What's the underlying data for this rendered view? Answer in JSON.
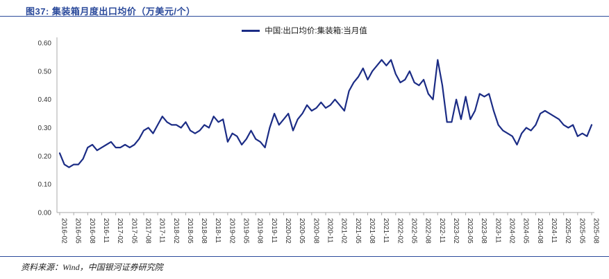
{
  "page": {
    "title": "图37:  集装箱月度出口均价（万美元/个）",
    "source": "资料来源：Wind，中国银河证券研究院",
    "accent_color": "#2b4a9b"
  },
  "chart_data": {
    "type": "line",
    "title": "集装箱月度出口均价（万美元/个）",
    "legend": [
      "中国:出口均价:集装箱:当月值"
    ],
    "line_color": "#1b2c85",
    "ylim": [
      0,
      0.6
    ],
    "yticks": [
      0.0,
      0.1,
      0.2,
      0.3,
      0.4,
      0.5,
      0.6
    ],
    "grid": false,
    "legend_position": "top-center",
    "x": [
      "2016-02",
      "2016-03",
      "2016-04",
      "2016-05",
      "2016-06",
      "2016-07",
      "2016-08",
      "2016-09",
      "2016-10",
      "2016-11",
      "2016-12",
      "2017-01",
      "2017-02",
      "2017-03",
      "2017-04",
      "2017-05",
      "2017-06",
      "2017-07",
      "2017-08",
      "2017-09",
      "2017-10",
      "2017-11",
      "2017-12",
      "2018-01",
      "2018-02",
      "2018-03",
      "2018-04",
      "2018-05",
      "2018-06",
      "2018-07",
      "2018-08",
      "2018-09",
      "2018-10",
      "2018-11",
      "2018-12",
      "2019-01",
      "2019-02",
      "2019-03",
      "2019-04",
      "2019-05",
      "2019-06",
      "2019-07",
      "2019-08",
      "2019-09",
      "2019-10",
      "2019-11",
      "2019-12",
      "2020-01",
      "2020-02",
      "2020-03",
      "2020-04",
      "2020-05",
      "2020-06",
      "2020-07",
      "2020-08",
      "2020-09",
      "2020-10",
      "2020-11",
      "2020-12",
      "2021-01",
      "2021-02",
      "2021-03",
      "2021-04",
      "2021-05",
      "2021-06",
      "2021-07",
      "2021-08",
      "2021-09",
      "2021-10",
      "2021-11",
      "2021-12",
      "2022-01",
      "2022-02",
      "2022-03",
      "2022-04",
      "2022-05",
      "2022-06",
      "2022-07",
      "2022-08",
      "2022-09",
      "2022-10",
      "2022-11",
      "2022-12",
      "2023-01",
      "2023-02",
      "2023-03",
      "2023-04",
      "2023-05",
      "2023-06",
      "2023-07",
      "2023-08",
      "2023-09",
      "2023-10",
      "2023-11",
      "2023-12",
      "2024-01",
      "2024-02",
      "2024-03",
      "2024-04",
      "2024-05",
      "2024-06",
      "2024-07",
      "2024-08",
      "2024-09",
      "2024-10",
      "2024-11",
      "2024-12",
      "2025-01",
      "2025-02",
      "2025-03",
      "2025-04",
      "2025-05",
      "2025-06",
      "2025-07",
      "2025-08"
    ],
    "values": [
      0.21,
      0.17,
      0.16,
      0.17,
      0.17,
      0.19,
      0.23,
      0.24,
      0.22,
      0.23,
      0.24,
      0.25,
      0.23,
      0.23,
      0.24,
      0.23,
      0.24,
      0.26,
      0.29,
      0.3,
      0.28,
      0.31,
      0.34,
      0.32,
      0.31,
      0.31,
      0.3,
      0.32,
      0.29,
      0.28,
      0.29,
      0.31,
      0.3,
      0.34,
      0.32,
      0.33,
      0.25,
      0.28,
      0.27,
      0.24,
      0.26,
      0.29,
      0.26,
      0.25,
      0.23,
      0.3,
      0.35,
      0.31,
      0.33,
      0.35,
      0.29,
      0.33,
      0.35,
      0.38,
      0.36,
      0.37,
      0.39,
      0.37,
      0.38,
      0.4,
      0.38,
      0.36,
      0.43,
      0.46,
      0.48,
      0.51,
      0.47,
      0.5,
      0.52,
      0.54,
      0.52,
      0.54,
      0.49,
      0.46,
      0.47,
      0.5,
      0.46,
      0.45,
      0.47,
      0.42,
      0.4,
      0.54,
      0.45,
      0.32,
      0.32,
      0.4,
      0.33,
      0.41,
      0.33,
      0.36,
      0.42,
      0.41,
      0.42,
      0.36,
      0.31,
      0.29,
      0.28,
      0.27,
      0.24,
      0.28,
      0.3,
      0.29,
      0.31,
      0.35,
      0.36,
      0.35,
      0.34,
      0.33,
      0.31,
      0.3,
      0.31,
      0.27,
      0.28,
      0.27,
      0.31
    ],
    "xtick_labels": [
      "2016-02",
      "2016-05",
      "2016-08",
      "2016-11",
      "2017-02",
      "2017-05",
      "2017-08",
      "2017-11",
      "2018-02",
      "2018-05",
      "2018-08",
      "2018-11",
      "2019-02",
      "2019-05",
      "2019-08",
      "2019-11",
      "2020-02",
      "2020-05",
      "2020-08",
      "2020-11",
      "2021-02",
      "2021-05",
      "2021-08",
      "2021-11",
      "2022-02",
      "2022-05",
      "2022-08",
      "2022-11",
      "2023-02",
      "2023-05",
      "2023-08",
      "2023-11",
      "2024-02",
      "2024-05",
      "2024-08",
      "2024-11",
      "2025-02",
      "2025-05",
      "2025-08"
    ],
    "xtick_step": 3
  }
}
